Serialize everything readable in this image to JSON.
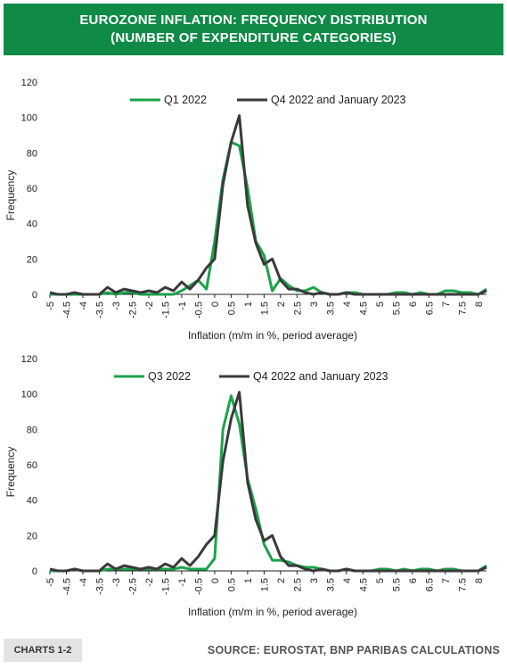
{
  "header": {
    "title_line1": "EUROZONE INFLATION: FREQUENCY DISTRIBUTION",
    "title_line2": "(NUMBER OF EXPENDITURE CATEGORIES)"
  },
  "footer": {
    "tag": "CHARTS 1-2",
    "source": "SOURCE: EUROSTAT, BNP PARIBAS CALCULATIONS"
  },
  "colors": {
    "green": "#1aa34a",
    "dark": "#3a3a3a",
    "header_bg": "#0f8b47"
  },
  "chart_data": [
    {
      "type": "line",
      "xlabel": "Inflation (m/m in %, period average)",
      "ylabel": "Frequency",
      "ylim": [
        0,
        120
      ],
      "yticks": [
        0,
        20,
        40,
        60,
        80,
        100,
        120
      ],
      "xlim": [
        -5,
        8.25
      ],
      "xticks": [
        "-5",
        "-4.5",
        "-4",
        "-3.5",
        "-3",
        "-2.5",
        "-2",
        "-1.5",
        "-1",
        "-0.5",
        "0",
        "0.5",
        "1",
        "1.5",
        "2",
        "2.5",
        "3",
        "3.5",
        "4",
        "4.5",
        "5",
        "5.5",
        "6",
        "6.5",
        "7",
        "7.5",
        "8"
      ],
      "grid": false,
      "legend_position": "top",
      "x": [
        -5,
        -4.75,
        -4.5,
        -4.25,
        -4,
        -3.75,
        -3.5,
        -3.25,
        -3,
        -2.75,
        -2.5,
        -2.25,
        -2,
        -1.75,
        -1.5,
        -1.25,
        -1,
        -0.75,
        -0.5,
        -0.25,
        0,
        0.25,
        0.5,
        0.75,
        1,
        1.25,
        1.5,
        1.75,
        2,
        2.25,
        2.5,
        2.75,
        3,
        3.25,
        3.5,
        3.75,
        4,
        4.25,
        4.5,
        4.75,
        5,
        5.25,
        5.5,
        5.75,
        6,
        6.25,
        6.5,
        6.75,
        7,
        7.25,
        7.5,
        7.75,
        8,
        8.25
      ],
      "series": [
        {
          "name": "Q1 2022",
          "color": "#1aa34a",
          "values": [
            0,
            0,
            0,
            0,
            0,
            0,
            0,
            1,
            0,
            1,
            1,
            0,
            0,
            0,
            0,
            0,
            2,
            5,
            8,
            3,
            30,
            65,
            86,
            84,
            60,
            30,
            22,
            2,
            9,
            5,
            2,
            2,
            4,
            1,
            0,
            0,
            1,
            1,
            0,
            0,
            0,
            0,
            1,
            1,
            0,
            1,
            0,
            0,
            2,
            2,
            1,
            1,
            0,
            3
          ]
        },
        {
          "name": "Q4 2022 and January 2023",
          "color": "#3a3a3a",
          "values": [
            1,
            0,
            0,
            1,
            0,
            0,
            0,
            4,
            1,
            3,
            2,
            1,
            2,
            1,
            4,
            2,
            7,
            3,
            8,
            15,
            20,
            62,
            86,
            101,
            50,
            29,
            17,
            20,
            8,
            3,
            3,
            1,
            0,
            1,
            0,
            0,
            1,
            0,
            0,
            0,
            0,
            0,
            0,
            0,
            0,
            0,
            0,
            0,
            0,
            0,
            0,
            0,
            0,
            2
          ]
        }
      ]
    },
    {
      "type": "line",
      "xlabel": "Inflation (m/m in %, period average)",
      "ylabel": "Frequency",
      "ylim": [
        0,
        120
      ],
      "yticks": [
        0,
        20,
        40,
        60,
        80,
        100,
        120
      ],
      "xlim": [
        -5,
        8.25
      ],
      "xticks": [
        "-5",
        "-4.5",
        "-4",
        "-3.5",
        "-3",
        "-2.5",
        "-2",
        "-1.5",
        "-1",
        "-0.5",
        "0",
        "0.5",
        "1",
        "1.5",
        "2",
        "2.5",
        "3",
        "3.5",
        "4",
        "4.5",
        "5",
        "5.5",
        "6",
        "6.5",
        "7",
        "7.5",
        "8"
      ],
      "grid": false,
      "legend_position": "top",
      "x": [
        -5,
        -4.75,
        -4.5,
        -4.25,
        -4,
        -3.75,
        -3.5,
        -3.25,
        -3,
        -2.75,
        -2.5,
        -2.25,
        -2,
        -1.75,
        -1.5,
        -1.25,
        -1,
        -0.75,
        -0.5,
        -0.25,
        0,
        0.25,
        0.5,
        0.75,
        1,
        1.25,
        1.5,
        1.75,
        2,
        2.25,
        2.5,
        2.75,
        3,
        3.25,
        3.5,
        3.75,
        4,
        4.25,
        4.5,
        4.75,
        5,
        5.25,
        5.5,
        5.75,
        6,
        6.25,
        6.5,
        6.75,
        7,
        7.25,
        7.5,
        7.75,
        8,
        8.25
      ],
      "series": [
        {
          "name": "Q3 2022",
          "color": "#1aa34a",
          "values": [
            0,
            0,
            0,
            1,
            0,
            0,
            0,
            1,
            1,
            1,
            1,
            1,
            1,
            1,
            1,
            1,
            2,
            1,
            1,
            1,
            7,
            80,
            99,
            83,
            52,
            35,
            15,
            6,
            6,
            5,
            3,
            2,
            2,
            1,
            0,
            0,
            1,
            0,
            0,
            0,
            1,
            1,
            0,
            1,
            0,
            1,
            1,
            0,
            1,
            1,
            0,
            0,
            0,
            3
          ]
        },
        {
          "name": "Q4 2022 and January 2023",
          "color": "#3a3a3a",
          "values": [
            1,
            0,
            0,
            1,
            0,
            0,
            0,
            4,
            1,
            3,
            2,
            1,
            2,
            1,
            4,
            2,
            7,
            3,
            8,
            15,
            20,
            62,
            86,
            101,
            50,
            29,
            17,
            20,
            8,
            3,
            3,
            1,
            0,
            1,
            0,
            0,
            1,
            0,
            0,
            0,
            0,
            0,
            0,
            0,
            0,
            0,
            0,
            0,
            0,
            0,
            0,
            0,
            0,
            2
          ]
        }
      ]
    }
  ]
}
